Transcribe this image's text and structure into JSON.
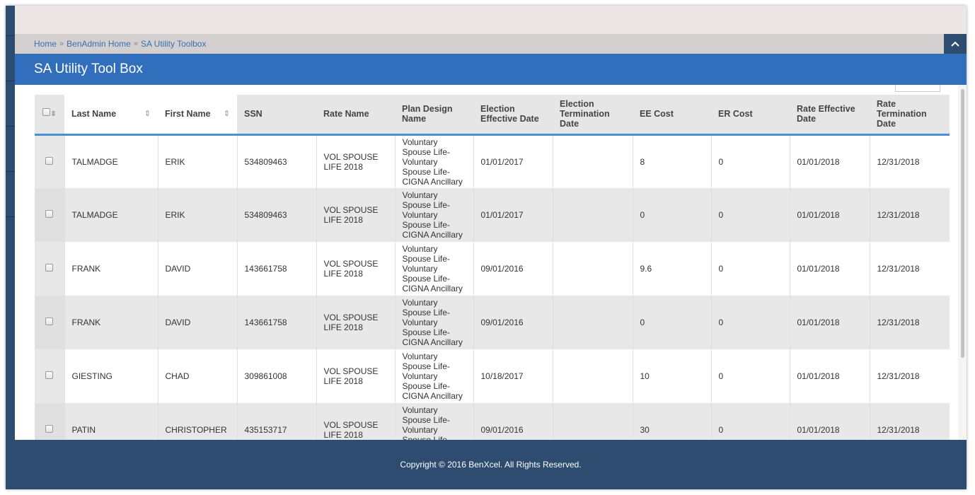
{
  "breadcrumb": [
    "Home",
    "BenAdmin Home",
    "SA Utility Toolbox"
  ],
  "breadcrumb_sep": "»",
  "page_title": "SA Utility Tool Box",
  "collapse_icon": "chevron-up-icon",
  "columns": [
    "Last Name",
    "First Name",
    "SSN",
    "Rate Name",
    "Plan Design Name",
    "Election Effective Date",
    "Election Termination Date",
    "EE Cost",
    "ER Cost",
    "Rate Effective Date",
    "Rate Termination Date"
  ],
  "rows": [
    {
      "last": "TALMADGE",
      "first": "ERIK",
      "ssn": "534809463",
      "rate": "VOL SPOUSE LIFE 2018",
      "plan": "Voluntary Spouse Life-Voluntary Spouse Life-CIGNA Ancillary",
      "elect_eff": "01/01/2017",
      "elect_term": "",
      "ee": "8",
      "er": "0",
      "rate_eff": "01/01/2018",
      "rate_term": "12/31/2018"
    },
    {
      "last": "TALMADGE",
      "first": "ERIK",
      "ssn": "534809463",
      "rate": "VOL SPOUSE LIFE 2018",
      "plan": "Voluntary Spouse Life-Voluntary Spouse Life-CIGNA Ancillary",
      "elect_eff": "01/01/2017",
      "elect_term": "",
      "ee": "0",
      "er": "0",
      "rate_eff": "01/01/2018",
      "rate_term": "12/31/2018"
    },
    {
      "last": "FRANK",
      "first": "DAVID",
      "ssn": "143661758",
      "rate": "VOL SPOUSE LIFE 2018",
      "plan": "Voluntary Spouse Life-Voluntary Spouse Life-CIGNA Ancillary",
      "elect_eff": "09/01/2016",
      "elect_term": "",
      "ee": "9.6",
      "er": "0",
      "rate_eff": "01/01/2018",
      "rate_term": "12/31/2018"
    },
    {
      "last": "FRANK",
      "first": "DAVID",
      "ssn": "143661758",
      "rate": "VOL SPOUSE LIFE 2018",
      "plan": "Voluntary Spouse Life-Voluntary Spouse Life-CIGNA Ancillary",
      "elect_eff": "09/01/2016",
      "elect_term": "",
      "ee": "0",
      "er": "0",
      "rate_eff": "01/01/2018",
      "rate_term": "12/31/2018"
    },
    {
      "last": "GIESTING",
      "first": "CHAD",
      "ssn": "309861008",
      "rate": "VOL SPOUSE LIFE 2018",
      "plan": "Voluntary Spouse Life-Voluntary Spouse Life-CIGNA Ancillary",
      "elect_eff": "10/18/2017",
      "elect_term": "",
      "ee": "10",
      "er": "0",
      "rate_eff": "01/01/2018",
      "rate_term": "12/31/2018"
    },
    {
      "last": "PATIN",
      "first": "CHRISTOPHER",
      "ssn": "435153717",
      "rate": "VOL SPOUSE LIFE 2018",
      "plan": "Voluntary Spouse Life-Voluntary Spouse Life-CIGNA Ancillary",
      "elect_eff": "09/01/2016",
      "elect_term": "",
      "ee": "30",
      "er": "0",
      "rate_eff": "01/01/2018",
      "rate_term": "12/31/2018"
    }
  ],
  "footer": "Copyright © 2016 BenXcel. All Rights Reserved."
}
